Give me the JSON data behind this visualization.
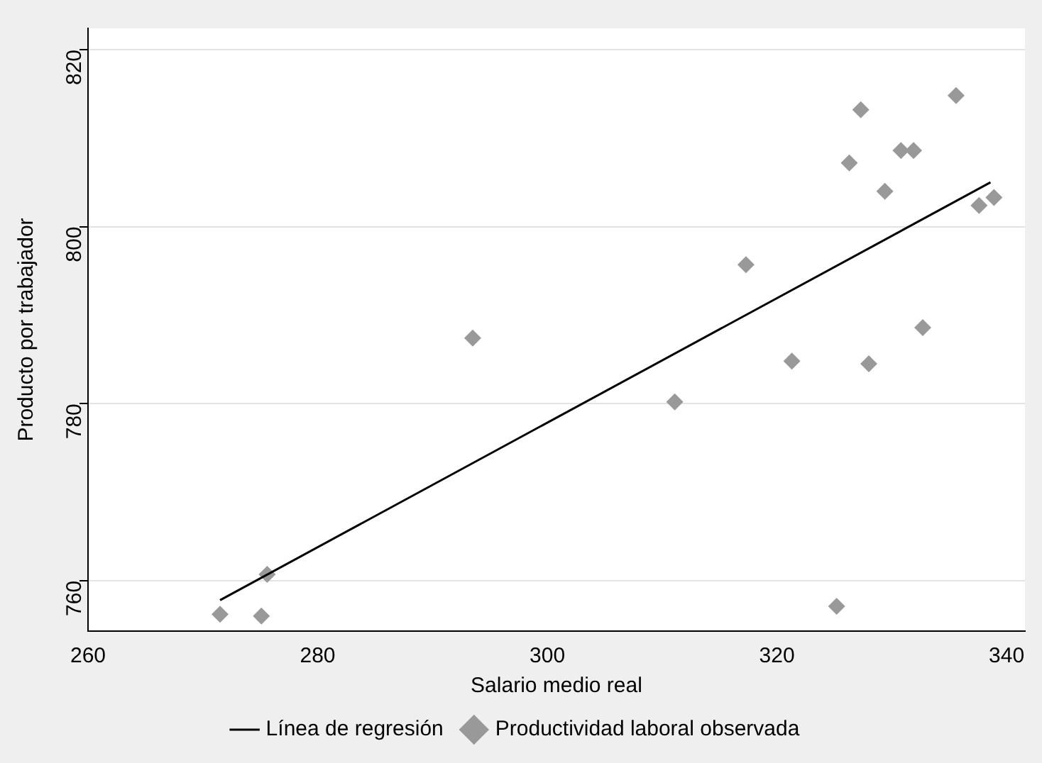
{
  "chart_data": {
    "type": "scatter",
    "xlabel": "Salario medio real",
    "ylabel": "Producto por trabajador",
    "xlim": [
      260,
      341.6
    ],
    "xticks": [
      260,
      280,
      300,
      320,
      340
    ],
    "ylim": [
      754.3,
      822.4
    ],
    "yticks": [
      760,
      780,
      800,
      820
    ],
    "grid": "y",
    "legend": "bottom",
    "marker": "diamond",
    "series": [
      {
        "name": "Línea de regresión",
        "type": "line",
        "color": "#000000",
        "marker": "none",
        "x": [
          271.5,
          338.6
        ],
        "values": [
          757.8,
          805.0
        ]
      },
      {
        "name": "Productividad laboral observada",
        "color": "#999999",
        "x": [
          271.5,
          275.1,
          275.6,
          293.5,
          311.1,
          317.3,
          321.3,
          325.2,
          326.3,
          327.3,
          328.0,
          329.4,
          330.8,
          331.9,
          332.7,
          335.6,
          337.6,
          338.9
        ],
        "values": [
          756.2,
          756.0,
          760.7,
          787.4,
          780.2,
          795.7,
          784.8,
          757.1,
          807.2,
          813.2,
          784.5,
          804.0,
          808.6,
          808.6,
          788.6,
          814.8,
          802.4,
          803.3
        ]
      }
    ]
  }
}
